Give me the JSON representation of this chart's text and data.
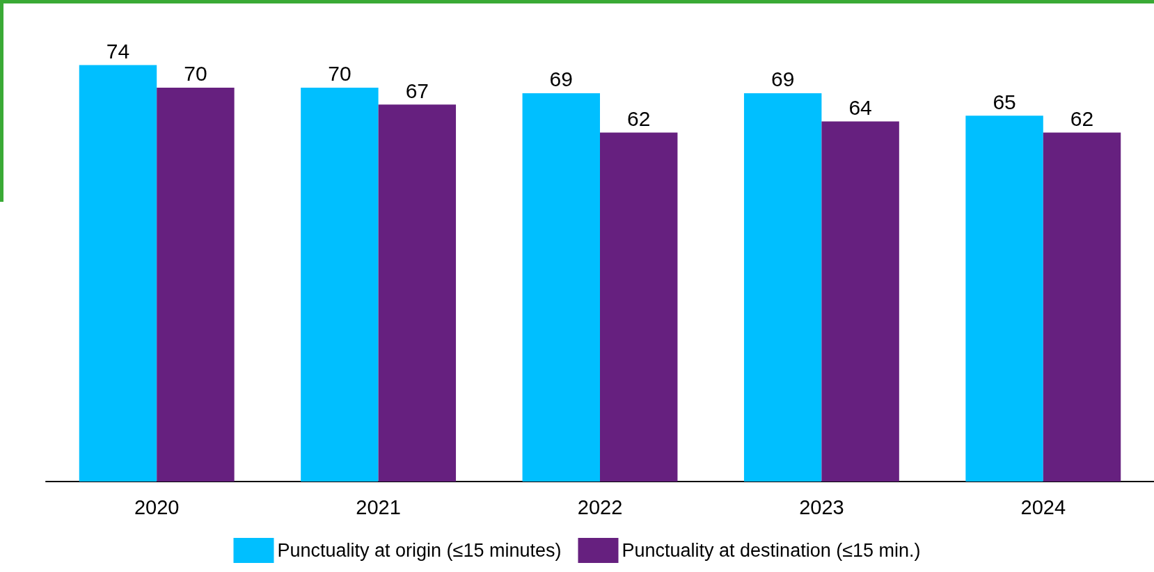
{
  "chart_data": {
    "type": "bar",
    "categories": [
      "2020",
      "2021",
      "2022",
      "2023",
      "2024"
    ],
    "series": [
      {
        "name": "Punctuality at origin (≤15 minutes)",
        "color": "#00bfff",
        "values": [
          74,
          70,
          69,
          69,
          65
        ]
      },
      {
        "name": "Punctuality at destination (≤15 min.)",
        "color": "#66207f",
        "values": [
          70,
          67,
          62,
          64,
          62
        ]
      }
    ],
    "data_labels": true,
    "legend": "bottom"
  }
}
